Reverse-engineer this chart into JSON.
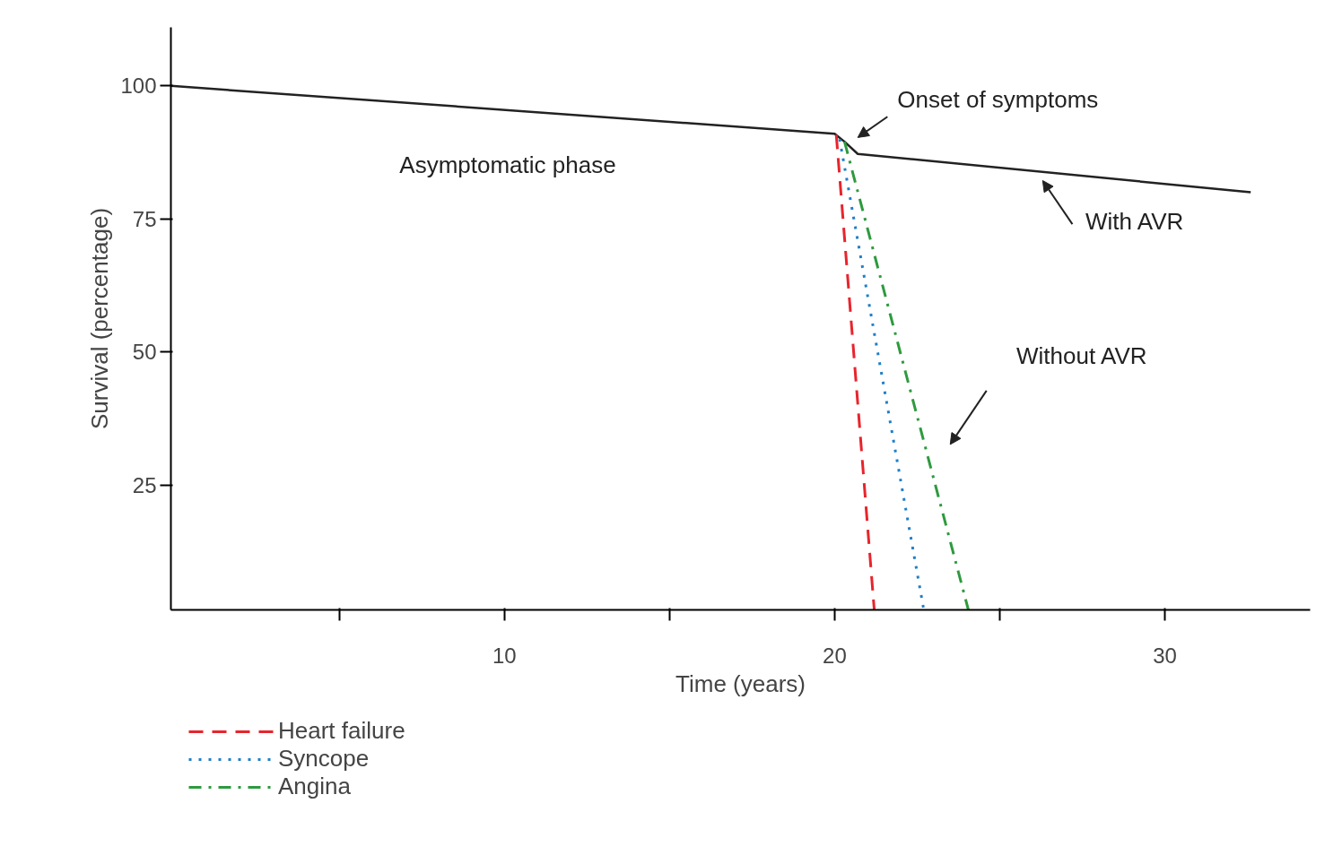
{
  "chart_data": {
    "type": "line",
    "xlabel": "Time (years)",
    "ylabel": "Survival (percentage)",
    "xlim": [
      -0.1,
      34.4
    ],
    "ylim": [
      1.5,
      111
    ],
    "xticks": [
      {
        "value": 5,
        "label": null
      },
      10,
      {
        "value": 15,
        "label": null
      },
      20,
      {
        "value": 25,
        "label": null
      },
      30
    ],
    "yticks": [
      25,
      50,
      75,
      100
    ],
    "grid": false,
    "legend": "bottom left",
    "series": [
      {
        "color": "#222222",
        "line_style": "solid",
        "x": [
          -0.1,
          20,
          20.3,
          20.7,
          32.6
        ],
        "values": [
          100,
          91,
          89.5,
          87.2,
          80
        ]
      },
      {
        "name": "Heart failure",
        "color": "#e8242c",
        "line_style": "dashed",
        "x": [
          20.05,
          21.2
        ],
        "values": [
          90.8,
          1.5
        ]
      },
      {
        "name": "Syncope",
        "color": "#1f7fc8",
        "line_style": "dotted",
        "x": [
          20.15,
          22.7
        ],
        "values": [
          90,
          1.5
        ]
      },
      {
        "name": "Angina",
        "color": "#2e9a3e",
        "line_style": "dashdot",
        "x": [
          20.3,
          24.05
        ],
        "values": [
          89.5,
          1.5
        ]
      }
    ],
    "annotations": [
      "Asymptomatic phase",
      "Onset of symptoms",
      "With AVR",
      "Without AVR"
    ]
  }
}
